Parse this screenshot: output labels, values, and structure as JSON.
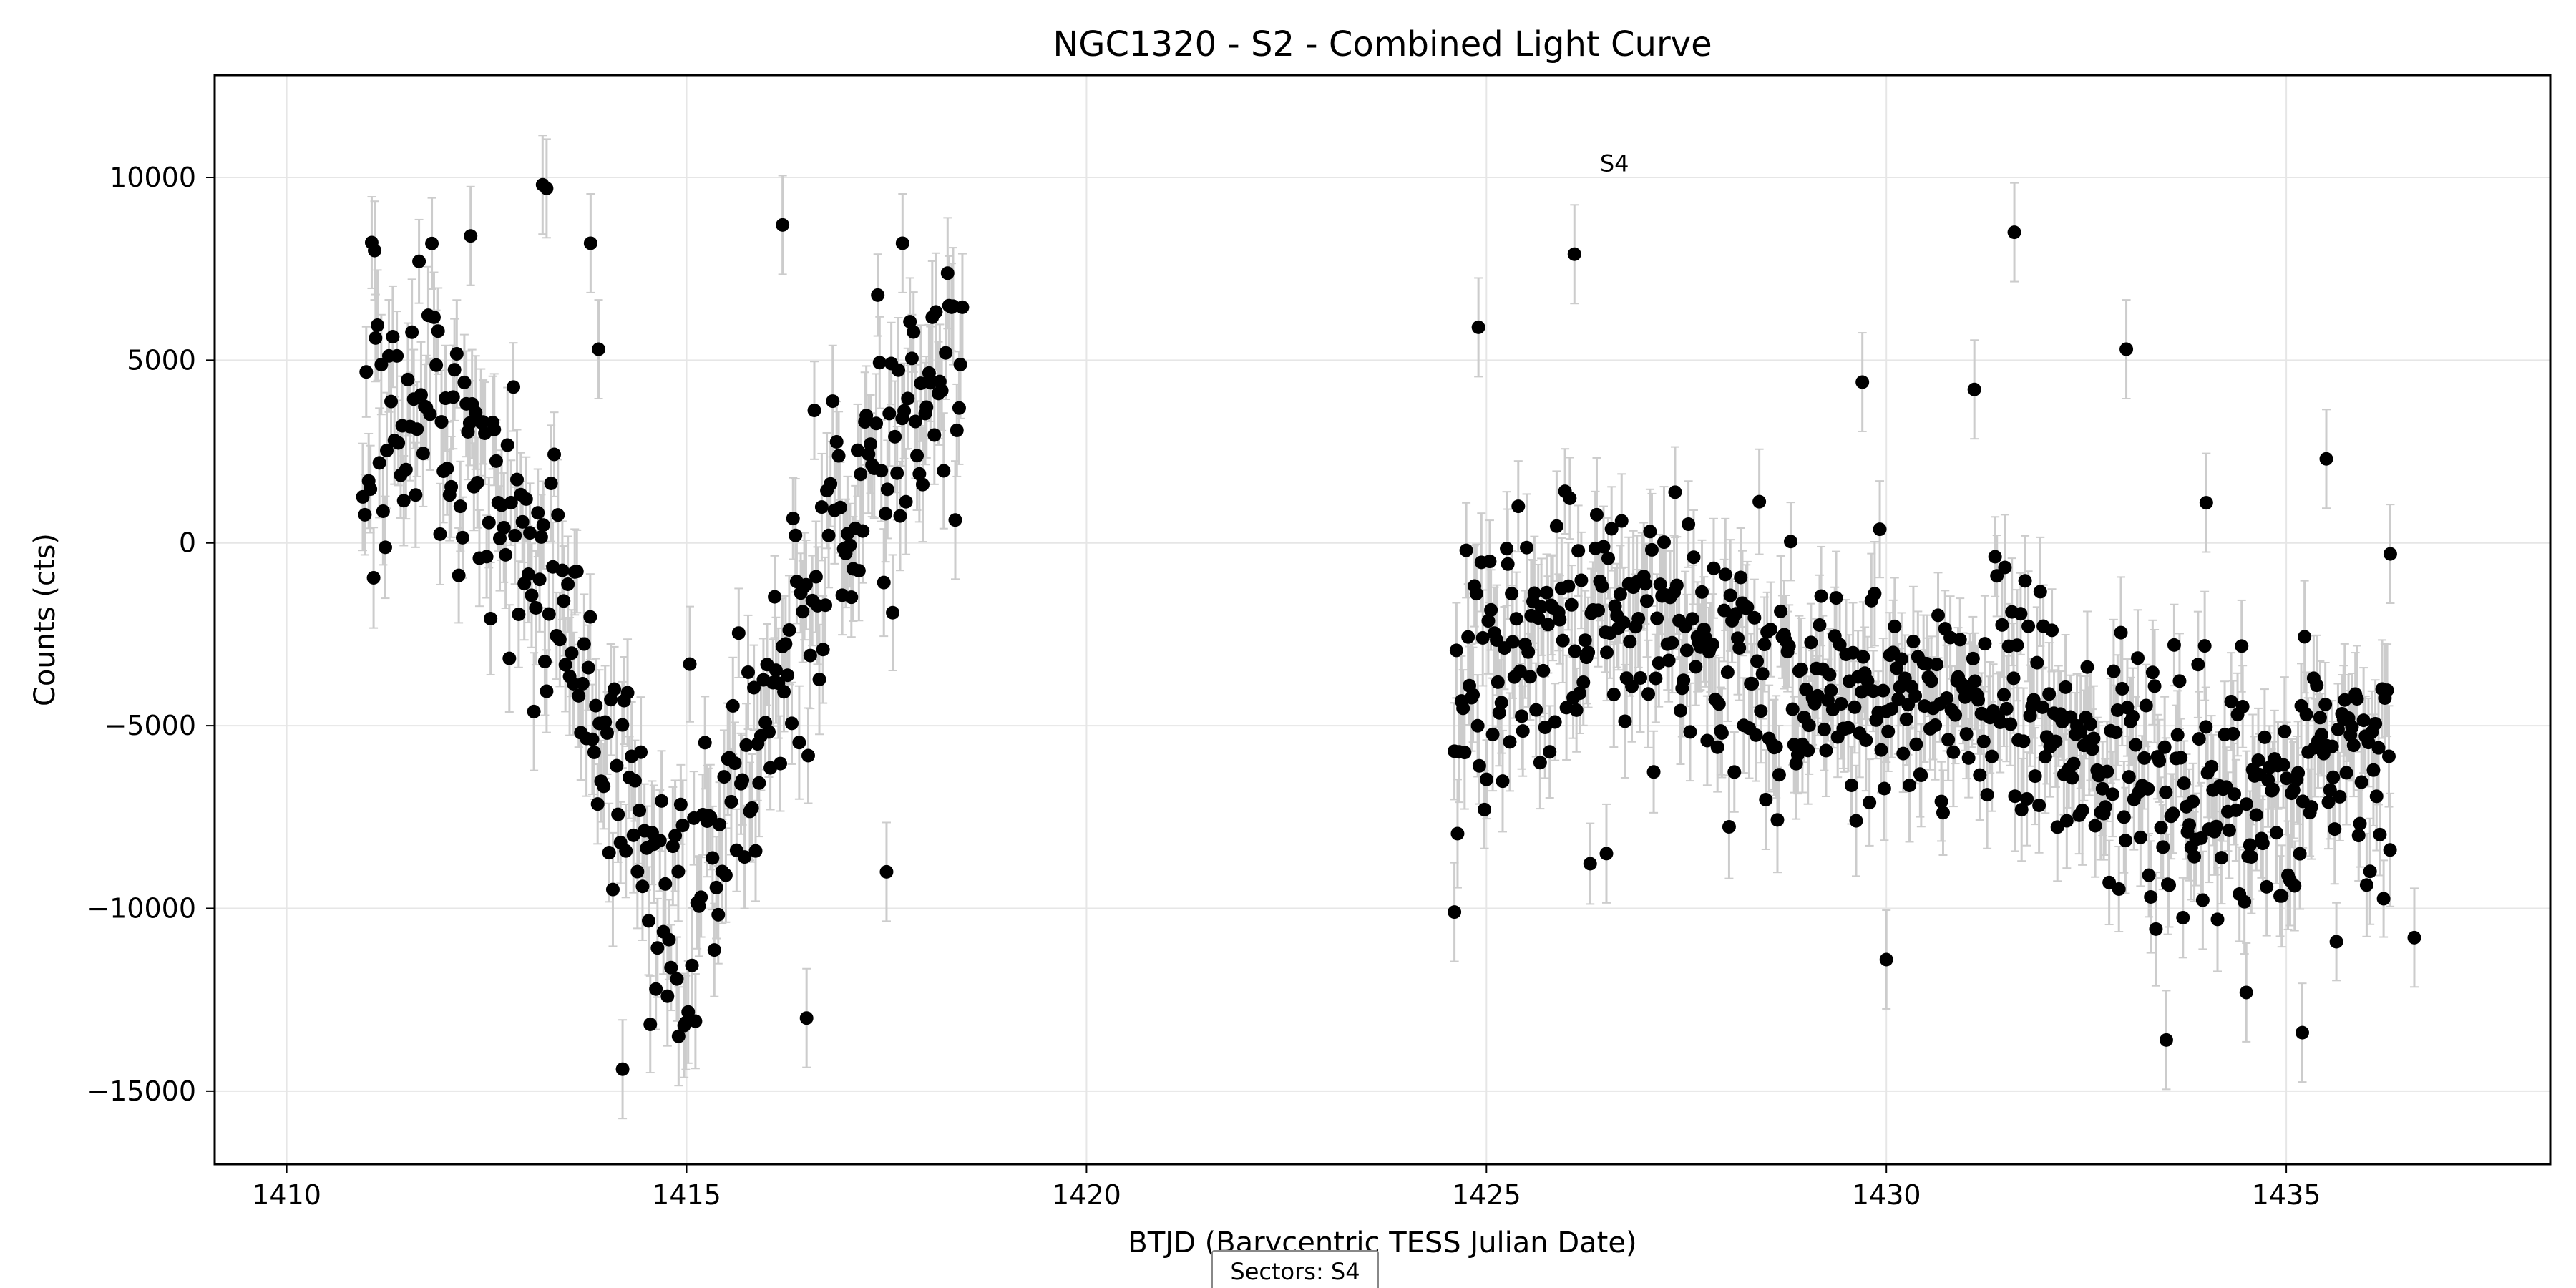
{
  "chart_data": {
    "type": "scatter",
    "title": "NGC1320 - S2 - Combined Light Curve",
    "xlabel": "BTJD (Barycentric TESS Julian Date)",
    "ylabel": "Counts (cts)",
    "xlim": [
      1409.1,
      1438.3
    ],
    "ylim": [
      -17000,
      12800
    ],
    "xticks": [
      1410,
      1415,
      1420,
      1425,
      1430,
      1435
    ],
    "yticks": [
      -15000,
      -10000,
      -5000,
      0,
      5000,
      10000
    ],
    "xtick_labels": [
      "1410",
      "1415",
      "1420",
      "1425",
      "1430",
      "1435"
    ],
    "ytick_labels": [
      "−15000",
      "−10000",
      "−5000",
      "0",
      "5000",
      "10000"
    ],
    "grid": true,
    "marker_color": "#000000",
    "errorbar_color": "#cccccc",
    "annotation": {
      "text": "S4",
      "x": 1426.6,
      "y": 10400
    },
    "legend": {
      "text": "Sectors: S4",
      "placement": "bottom-center"
    },
    "segments": [
      {
        "x_start": 1410.95,
        "x_end": 1418.45,
        "n": 320,
        "err_typical": 1350,
        "trend": [
          [
            1410.95,
            3600
          ],
          [
            1411.7,
            4400
          ],
          [
            1412.3,
            3200
          ],
          [
            1412.9,
            300
          ],
          [
            1413.3,
            -1000
          ],
          [
            1413.8,
            -3500
          ],
          [
            1414.4,
            -8500
          ],
          [
            1414.9,
            -10000
          ],
          [
            1415.4,
            -7800
          ],
          [
            1415.9,
            -5500
          ],
          [
            1416.3,
            -3000
          ],
          [
            1416.8,
            500
          ],
          [
            1417.3,
            2500
          ],
          [
            1418.0,
            3200
          ],
          [
            1418.45,
            4300
          ]
        ],
        "scatter": 2600
      },
      {
        "x_start": 1424.6,
        "x_end": 1436.3,
        "n": 560,
        "err_typical": 1300,
        "trend": [
          [
            1424.6,
            -3800
          ],
          [
            1425.5,
            -2600
          ],
          [
            1426.5,
            -1800
          ],
          [
            1427.5,
            -2600
          ],
          [
            1428.5,
            -3500
          ],
          [
            1429.5,
            -4200
          ],
          [
            1430.5,
            -4600
          ],
          [
            1431.5,
            -3600
          ],
          [
            1432.3,
            -5200
          ],
          [
            1433.0,
            -6400
          ],
          [
            1434.0,
            -6900
          ],
          [
            1435.0,
            -6800
          ],
          [
            1436.3,
            -5800
          ]
        ],
        "scatter": 2300
      }
    ],
    "highlights": [
      [
        1413.2,
        9800
      ],
      [
        1413.25,
        9700
      ],
      [
        1413.8,
        8200
      ],
      [
        1412.3,
        8400
      ],
      [
        1411.1,
        8000
      ],
      [
        1416.2,
        8700
      ],
      [
        1417.7,
        8200
      ],
      [
        1413.9,
        5300
      ],
      [
        1414.2,
        -14400
      ],
      [
        1414.9,
        -13500
      ],
      [
        1416.5,
        -13000
      ],
      [
        1417.5,
        -9000
      ],
      [
        1424.6,
        -10100
      ],
      [
        1424.9,
        5900
      ],
      [
        1426.1,
        7900
      ],
      [
        1429.7,
        4400
      ],
      [
        1431.6,
        8500
      ],
      [
        1433.0,
        5300
      ],
      [
        1431.1,
        4200
      ],
      [
        1433.5,
        -13600
      ],
      [
        1435.2,
        -13400
      ],
      [
        1434.5,
        -12300
      ],
      [
        1435.5,
        2300
      ],
      [
        1436.6,
        -10800
      ],
      [
        1436.3,
        -300
      ],
      [
        1434.0,
        1100
      ],
      [
        1430.0,
        -11400
      ],
      [
        1426.5,
        -8500
      ]
    ]
  }
}
